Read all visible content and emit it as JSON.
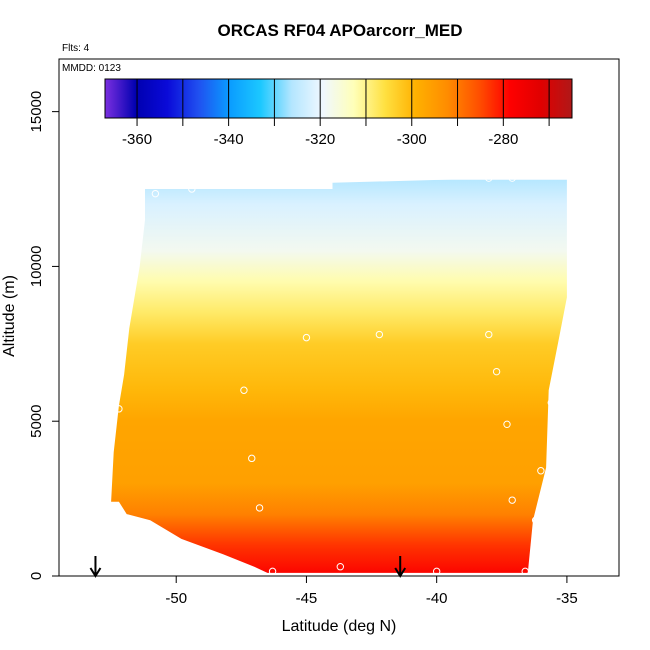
{
  "chart_data": {
    "type": "heatmap",
    "title": "ORCAS RF04 APOarcorr_MED",
    "annotations": {
      "flights": "Flts: 4",
      "date": "MMDD: 0123"
    },
    "xlabel": "Latitude (deg N)",
    "ylabel": "Altitude (m)",
    "xlim": [
      -54.5,
      -33.0
    ],
    "ylim": [
      0,
      16700
    ],
    "x_ticks": [
      -50,
      -45,
      -40,
      -35
    ],
    "y_ticks": [
      0,
      5000,
      10000,
      15000
    ],
    "colorbar": {
      "range": [
        -367,
        -265
      ],
      "ticks": [
        -360,
        -340,
        -320,
        -300,
        -280
      ],
      "colors": [
        "#7b2fe0",
        "#0000b0",
        "#0a0ad8",
        "#2050f0",
        "#0a9cff",
        "#1cc8ff",
        "#b4e6ff",
        "#f0f8ff",
        "#ffffb8",
        "#ffe040",
        "#ffb000",
        "#ff8c00",
        "#ff5000",
        "#ff0000",
        "#e00000",
        "#b01818"
      ]
    },
    "field_boundary": [
      [
        -52.5,
        2400
      ],
      [
        -52.2,
        2400
      ],
      [
        -52.2,
        2400
      ],
      [
        -51.9,
        2000
      ],
      [
        -51.0,
        1800
      ],
      [
        -49.8,
        1200
      ],
      [
        -48.2,
        700
      ],
      [
        -47.0,
        300
      ],
      [
        -46.5,
        100
      ],
      [
        -36.5,
        100
      ],
      [
        -36.3,
        1800
      ],
      [
        -35.8,
        3500
      ],
      [
        -35.7,
        6000
      ],
      [
        -35.3,
        7700
      ],
      [
        -35.0,
        9000
      ],
      [
        -35.0,
        12900
      ],
      [
        -35.4,
        12900
      ],
      [
        -44.0,
        12700
      ],
      [
        -44.0,
        12500
      ],
      [
        -51.2,
        12500
      ],
      [
        -51.2,
        11500
      ],
      [
        -51.4,
        10000
      ],
      [
        -51.8,
        8000
      ],
      [
        -52.0,
        6500
      ],
      [
        -52.2,
        5500
      ],
      [
        -52.4,
        4000
      ],
      [
        -52.5,
        2400
      ]
    ],
    "profile": [
      {
        "alt": 0,
        "value": -278
      },
      {
        "alt": 1000,
        "value": -283
      },
      {
        "alt": 2000,
        "value": -291
      },
      {
        "alt": 3000,
        "value": -296
      },
      {
        "alt": 5000,
        "value": -297
      },
      {
        "alt": 6000,
        "value": -300
      },
      {
        "alt": 7500,
        "value": -303
      },
      {
        "alt": 8500,
        "value": -308
      },
      {
        "alt": 9500,
        "value": -312
      },
      {
        "alt": 10500,
        "value": -318
      },
      {
        "alt": 12000,
        "value": -322
      },
      {
        "alt": 12800,
        "value": -326
      }
    ],
    "measurement_points": [
      {
        "lat": -50.8,
        "alt": 12350
      },
      {
        "lat": -49.4,
        "alt": 12500
      },
      {
        "lat": -38.0,
        "alt": 12850
      },
      {
        "lat": -37.1,
        "alt": 12850
      },
      {
        "lat": -34.8,
        "alt": 12850
      },
      {
        "lat": -45.0,
        "alt": 7700
      },
      {
        "lat": -42.2,
        "alt": 7800
      },
      {
        "lat": -38.0,
        "alt": 7800
      },
      {
        "lat": -35.1,
        "alt": 7700
      },
      {
        "lat": -37.7,
        "alt": 6600
      },
      {
        "lat": -47.4,
        "alt": 6000
      },
      {
        "lat": -35.6,
        "alt": 5600
      },
      {
        "lat": -52.2,
        "alt": 5400
      },
      {
        "lat": -37.3,
        "alt": 4900
      },
      {
        "lat": -47.1,
        "alt": 3800
      },
      {
        "lat": -36.0,
        "alt": 3400
      },
      {
        "lat": -52.7,
        "alt": 2400
      },
      {
        "lat": -46.8,
        "alt": 2200
      },
      {
        "lat": -37.1,
        "alt": 2450
      },
      {
        "lat": -36.2,
        "alt": 1800
      },
      {
        "lat": -46.3,
        "alt": 150
      },
      {
        "lat": -43.7,
        "alt": 300
      },
      {
        "lat": -40.0,
        "alt": 150
      },
      {
        "lat": -36.6,
        "alt": 150
      }
    ],
    "arrows": [
      {
        "lat": -53.1
      },
      {
        "lat": -41.4
      }
    ]
  }
}
